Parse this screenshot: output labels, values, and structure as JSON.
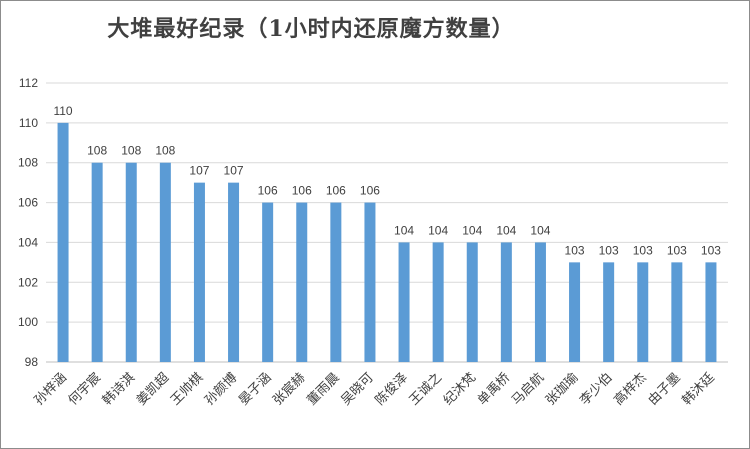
{
  "chart_data": {
    "type": "bar",
    "title": "大堆最好纪录（1小时内还原魔方数量）",
    "categories": [
      "孙梓涵",
      "何宇宸",
      "韩诗淇",
      "姜凯超",
      "王帅棋",
      "孙颜博",
      "晏子涵",
      "张宸赫",
      "董雨晨",
      "吴晓可",
      "陈俊泽",
      "王诚之",
      "纪沐梵",
      "单禹桥",
      "马启航",
      "张珈瑜",
      "李少伯",
      "高梓杰",
      "由子墨",
      "韩沐廷"
    ],
    "values": [
      110,
      108,
      108,
      108,
      107,
      107,
      106,
      106,
      106,
      106,
      104,
      104,
      104,
      104,
      104,
      103,
      103,
      103,
      103,
      103
    ],
    "ylim": [
      98,
      112
    ],
    "yticks": [
      98,
      100,
      102,
      104,
      106,
      108,
      110,
      112
    ],
    "grid": true,
    "bar_color": "#5b9bd5",
    "xlabel": "",
    "ylabel": ""
  }
}
